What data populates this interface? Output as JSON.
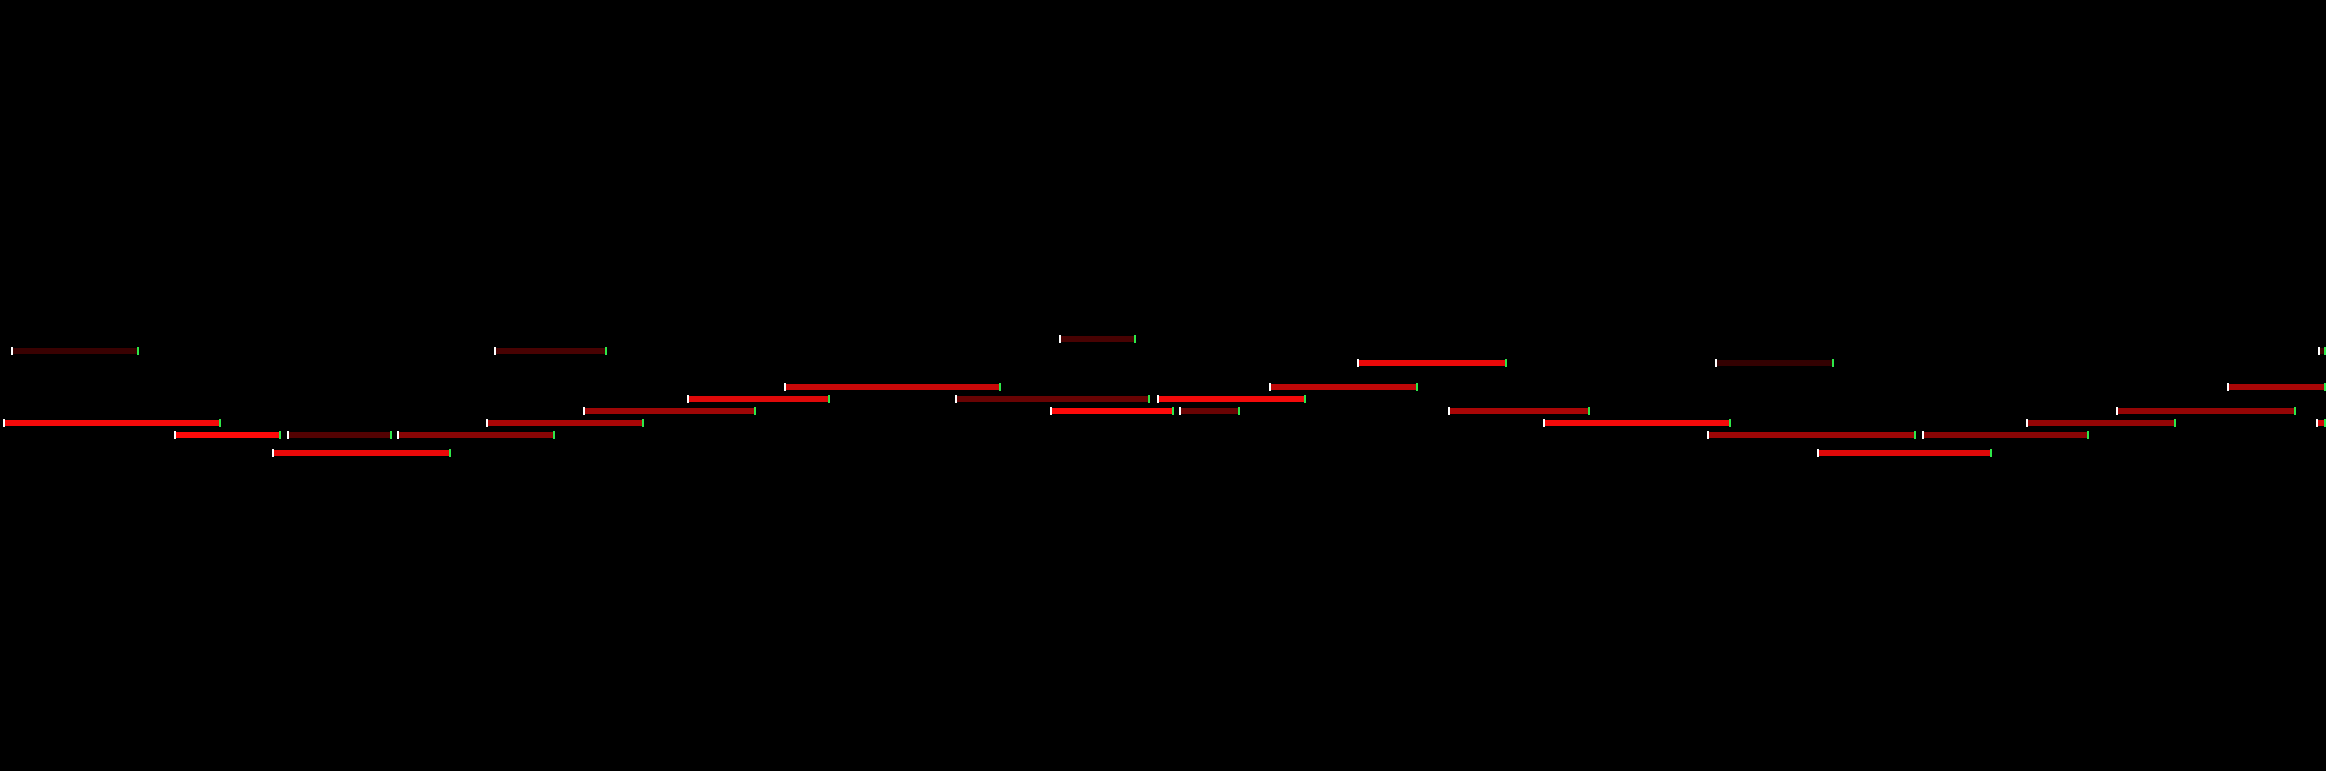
{
  "view": {
    "time_start": 0,
    "time_end": 2326,
    "pitch_top": 0,
    "pitch_bottom": 64,
    "colors": {
      "background": "#000000",
      "note_base": "#ff0000",
      "note_head": "#ffffff",
      "note_tail": "#2ee84a"
    }
  },
  "notes": [
    {
      "start": 11,
      "end": 139,
      "pitch": 29,
      "velocity": 0.08
    },
    {
      "start": 3,
      "end": 221,
      "pitch": 35,
      "velocity": 0.95
    },
    {
      "start": 174,
      "end": 281,
      "pitch": 36,
      "velocity": 1.0
    },
    {
      "start": 272,
      "end": 451,
      "pitch": 37.5,
      "velocity": 0.9
    },
    {
      "start": 287,
      "end": 392,
      "pitch": 36,
      "velocity": 0.2
    },
    {
      "start": 397,
      "end": 555,
      "pitch": 36,
      "velocity": 0.45
    },
    {
      "start": 494,
      "end": 607,
      "pitch": 29,
      "velocity": 0.15
    },
    {
      "start": 486,
      "end": 644,
      "pitch": 35,
      "velocity": 0.6
    },
    {
      "start": 583,
      "end": 756,
      "pitch": 34,
      "velocity": 0.55
    },
    {
      "start": 687,
      "end": 830,
      "pitch": 33,
      "velocity": 0.85
    },
    {
      "start": 784,
      "end": 1001,
      "pitch": 32,
      "velocity": 0.75
    },
    {
      "start": 955,
      "end": 1150,
      "pitch": 33,
      "velocity": 0.3
    },
    {
      "start": 1059,
      "end": 1136,
      "pitch": 28,
      "velocity": 0.15
    },
    {
      "start": 1050,
      "end": 1174,
      "pitch": 34,
      "velocity": 1.0
    },
    {
      "start": 1179,
      "end": 1240,
      "pitch": 34,
      "velocity": 0.3
    },
    {
      "start": 1157,
      "end": 1306,
      "pitch": 33,
      "velocity": 0.95
    },
    {
      "start": 1269,
      "end": 1418,
      "pitch": 32,
      "velocity": 0.7
    },
    {
      "start": 1357,
      "end": 1507,
      "pitch": 30,
      "velocity": 0.9
    },
    {
      "start": 1448,
      "end": 1590,
      "pitch": 34,
      "velocity": 0.6
    },
    {
      "start": 1543,
      "end": 1731,
      "pitch": 35,
      "velocity": 0.95
    },
    {
      "start": 1715,
      "end": 1834,
      "pitch": 30,
      "velocity": 0.05
    },
    {
      "start": 1707,
      "end": 1916,
      "pitch": 36,
      "velocity": 0.55
    },
    {
      "start": 1922,
      "end": 2089,
      "pitch": 36,
      "velocity": 0.45
    },
    {
      "start": 1817,
      "end": 1992,
      "pitch": 37.5,
      "velocity": 0.85
    },
    {
      "start": 2026,
      "end": 2176,
      "pitch": 35,
      "velocity": 0.5
    },
    {
      "start": 2116,
      "end": 2296,
      "pitch": 34,
      "velocity": 0.5
    },
    {
      "start": 2227,
      "end": 2326,
      "pitch": 32,
      "velocity": 0.6
    },
    {
      "start": 2318,
      "end": 2326,
      "pitch": 29,
      "velocity": 0.1
    },
    {
      "start": 2316,
      "end": 2326,
      "pitch": 35,
      "velocity": 0.8
    }
  ]
}
